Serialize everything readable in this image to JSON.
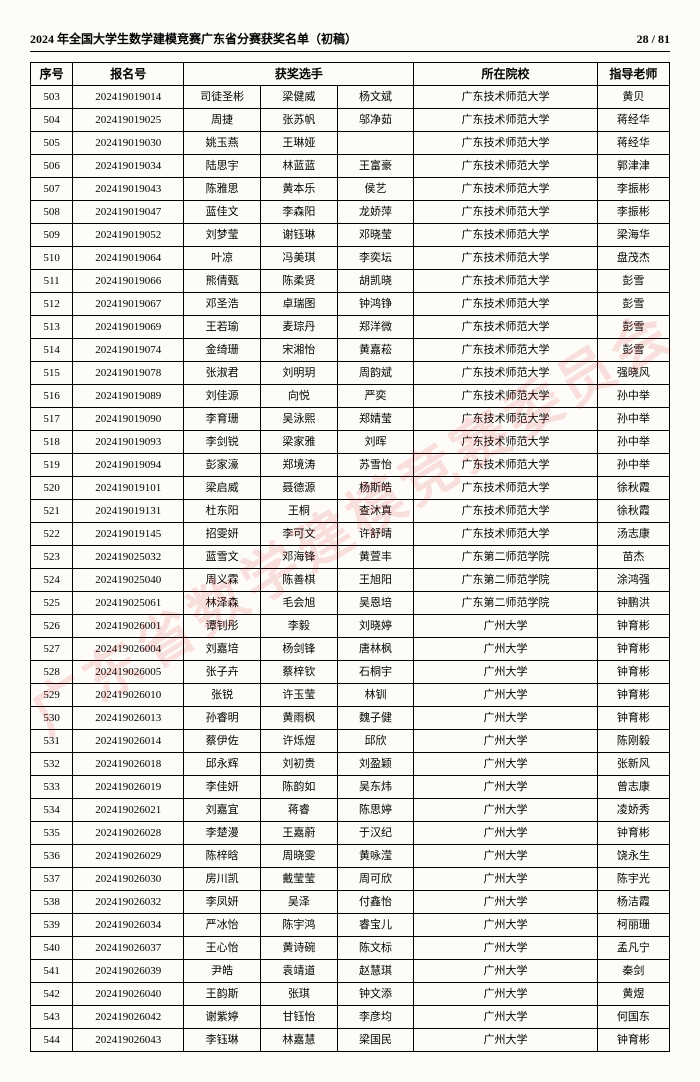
{
  "header": {
    "title": "2024 年全国大学生数学建模竞赛广东省分赛获奖名单（初稿）",
    "page": "28 / 81"
  },
  "watermark": "广东省数学建模竞赛委员会",
  "columns": {
    "seq": "序号",
    "reg": "报名号",
    "winners": "获奖选手",
    "school": "所在院校",
    "advisor": "指导老师"
  },
  "rows": [
    {
      "seq": "503",
      "reg": "202419019014",
      "m": [
        "司徒圣彬",
        "梁健威",
        "杨文斌"
      ],
      "school": "广东技术师范大学",
      "advisor": "黄贝"
    },
    {
      "seq": "504",
      "reg": "202419019025",
      "m": [
        "周捷",
        "张苏帆",
        "邬净茹"
      ],
      "school": "广东技术师范大学",
      "advisor": "蒋经华"
    },
    {
      "seq": "505",
      "reg": "202419019030",
      "m": [
        "姚玉燕",
        "王琳娅",
        "",
        ""
      ],
      "school": "广东技术师范大学",
      "advisor": "蒋经华"
    },
    {
      "seq": "506",
      "reg": "202419019034",
      "m": [
        "陆思宇",
        "林蓝蓝",
        "王富豪"
      ],
      "school": "广东技术师范大学",
      "advisor": "郭津津"
    },
    {
      "seq": "507",
      "reg": "202419019043",
      "m": [
        "陈雅思",
        "黄本乐",
        "侯艺"
      ],
      "school": "广东技术师范大学",
      "advisor": "李振彬"
    },
    {
      "seq": "508",
      "reg": "202419019047",
      "m": [
        "蓝佳文",
        "李森阳",
        "龙娇萍"
      ],
      "school": "广东技术师范大学",
      "advisor": "李振彬"
    },
    {
      "seq": "509",
      "reg": "202419019052",
      "m": [
        "刘梦莹",
        "谢钰琳",
        "邓晓莹"
      ],
      "school": "广东技术师范大学",
      "advisor": "梁海华"
    },
    {
      "seq": "510",
      "reg": "202419019064",
      "m": [
        "叶凉",
        "冯美琪",
        "李奕坛"
      ],
      "school": "广东技术师范大学",
      "advisor": "盘茂杰"
    },
    {
      "seq": "511",
      "reg": "202419019066",
      "m": [
        "熊倩甄",
        "陈柔贤",
        "胡凯晓"
      ],
      "school": "广东技术师范大学",
      "advisor": "彭雪"
    },
    {
      "seq": "512",
      "reg": "202419019067",
      "m": [
        "邓圣浩",
        "卓瑞图",
        "钟鸿铮"
      ],
      "school": "广东技术师范大学",
      "advisor": "彭雪"
    },
    {
      "seq": "513",
      "reg": "202419019069",
      "m": [
        "王若瑜",
        "麦琮丹",
        "郑洋微"
      ],
      "school": "广东技术师范大学",
      "advisor": "彭雪"
    },
    {
      "seq": "514",
      "reg": "202419019074",
      "m": [
        "金绮珊",
        "宋湘怡",
        "黄嘉菘"
      ],
      "school": "广东技术师范大学",
      "advisor": "彭雪"
    },
    {
      "seq": "515",
      "reg": "202419019078",
      "m": [
        "张淑君",
        "刘明玥",
        "周韵斌"
      ],
      "school": "广东技术师范大学",
      "advisor": "强晓风"
    },
    {
      "seq": "516",
      "reg": "202419019089",
      "m": [
        "刘佳源",
        "向悦",
        "严奕"
      ],
      "school": "广东技术师范大学",
      "advisor": "孙中举"
    },
    {
      "seq": "517",
      "reg": "202419019090",
      "m": [
        "李育珊",
        "吴泳熙",
        "郑婧莹"
      ],
      "school": "广东技术师范大学",
      "advisor": "孙中举"
    },
    {
      "seq": "518",
      "reg": "202419019093",
      "m": [
        "李剑锐",
        "梁家雅",
        "刘晖"
      ],
      "school": "广东技术师范大学",
      "advisor": "孙中举"
    },
    {
      "seq": "519",
      "reg": "202419019094",
      "m": [
        "彭家濠",
        "郑境涛",
        "苏雪怡"
      ],
      "school": "广东技术师范大学",
      "advisor": "孙中举"
    },
    {
      "seq": "520",
      "reg": "202419019101",
      "m": [
        "梁启威",
        "聂德源",
        "杨斯皓"
      ],
      "school": "广东技术师范大学",
      "advisor": "徐秋霞"
    },
    {
      "seq": "521",
      "reg": "202419019131",
      "m": [
        "杜东阳",
        "王桐",
        "查沐真"
      ],
      "school": "广东技术师范大学",
      "advisor": "徐秋霞"
    },
    {
      "seq": "522",
      "reg": "202419019145",
      "m": [
        "招雯妍",
        "李可文",
        "许舒晴"
      ],
      "school": "广东技术师范大学",
      "advisor": "汤志康"
    },
    {
      "seq": "523",
      "reg": "202419025032",
      "m": [
        "蓝雪文",
        "邓海锋",
        "黄萱丰"
      ],
      "school": "广东第二师范学院",
      "advisor": "苗杰"
    },
    {
      "seq": "524",
      "reg": "202419025040",
      "m": [
        "周义霖",
        "陈善棋",
        "王旭阳"
      ],
      "school": "广东第二师范学院",
      "advisor": "涂鸿强"
    },
    {
      "seq": "525",
      "reg": "202419025061",
      "m": [
        "林泽森",
        "毛会旭",
        "吴恩培"
      ],
      "school": "广东第二师范学院",
      "advisor": "钟鹏洪"
    },
    {
      "seq": "526",
      "reg": "202419026001",
      "m": [
        "谭钊彤",
        "李毅",
        "刘晓婷"
      ],
      "school": "广州大学",
      "advisor": "钟育彬"
    },
    {
      "seq": "527",
      "reg": "202419026004",
      "m": [
        "刘嘉培",
        "杨剑锋",
        "唐林枫"
      ],
      "school": "广州大学",
      "advisor": "钟育彬"
    },
    {
      "seq": "528",
      "reg": "202419026005",
      "m": [
        "张子卉",
        "蔡梓钦",
        "石桐宇"
      ],
      "school": "广州大学",
      "advisor": "钟育彬"
    },
    {
      "seq": "529",
      "reg": "202419026010",
      "m": [
        "张锐",
        "许玉莹",
        "林钏"
      ],
      "school": "广州大学",
      "advisor": "钟育彬"
    },
    {
      "seq": "530",
      "reg": "202419026013",
      "m": [
        "孙睿明",
        "黄雨枫",
        "魏子健"
      ],
      "school": "广州大学",
      "advisor": "钟育彬"
    },
    {
      "seq": "531",
      "reg": "202419026014",
      "m": [
        "蔡伊佐",
        "许烁煜",
        "邱欣"
      ],
      "school": "广州大学",
      "advisor": "陈刚毅"
    },
    {
      "seq": "532",
      "reg": "202419026018",
      "m": [
        "邱永辉",
        "刘初贵",
        "刘盈颖"
      ],
      "school": "广州大学",
      "advisor": "张新风"
    },
    {
      "seq": "533",
      "reg": "202419026019",
      "m": [
        "李佳妍",
        "陈韵如",
        "吴东炜"
      ],
      "school": "广州大学",
      "advisor": "曾志康"
    },
    {
      "seq": "534",
      "reg": "202419026021",
      "m": [
        "刘嘉宜",
        "蒋睿",
        "陈思婷"
      ],
      "school": "广州大学",
      "advisor": "凌娇秀"
    },
    {
      "seq": "535",
      "reg": "202419026028",
      "m": [
        "李楚漫",
        "王嘉蔚",
        "于汉纪"
      ],
      "school": "广州大学",
      "advisor": "钟育彬"
    },
    {
      "seq": "536",
      "reg": "202419026029",
      "m": [
        "陈梓晗",
        "周晓雯",
        "黄咏滢"
      ],
      "school": "广州大学",
      "advisor": "饶永生"
    },
    {
      "seq": "537",
      "reg": "202419026030",
      "m": [
        "房川凯",
        "戴莹莹",
        "周可欣"
      ],
      "school": "广州大学",
      "advisor": "陈宇光"
    },
    {
      "seq": "538",
      "reg": "202419026032",
      "m": [
        "李凤妍",
        "吴泽",
        "付鑫怡"
      ],
      "school": "广州大学",
      "advisor": "杨洁霞"
    },
    {
      "seq": "539",
      "reg": "202419026034",
      "m": [
        "严冰怡",
        "陈宇鸿",
        "睿宝儿"
      ],
      "school": "广州大学",
      "advisor": "柯丽珊"
    },
    {
      "seq": "540",
      "reg": "202419026037",
      "m": [
        "王心怡",
        "黄诗碗",
        "陈文标"
      ],
      "school": "广州大学",
      "advisor": "孟凡宁"
    },
    {
      "seq": "541",
      "reg": "202419026039",
      "m": [
        "尹皓",
        "袁靖道",
        "赵慧琪"
      ],
      "school": "广州大学",
      "advisor": "秦剑"
    },
    {
      "seq": "542",
      "reg": "202419026040",
      "m": [
        "王韵斯",
        "张琪",
        "钟文添"
      ],
      "school": "广州大学",
      "advisor": "黄煜"
    },
    {
      "seq": "543",
      "reg": "202419026042",
      "m": [
        "谢紫婷",
        "甘钰怡",
        "李彦均"
      ],
      "school": "广州大学",
      "advisor": "何国东"
    },
    {
      "seq": "544",
      "reg": "202419026043",
      "m": [
        "李钰琳",
        "林嘉慧",
        "梁国民"
      ],
      "school": "广州大学",
      "advisor": "钟育彬"
    }
  ]
}
